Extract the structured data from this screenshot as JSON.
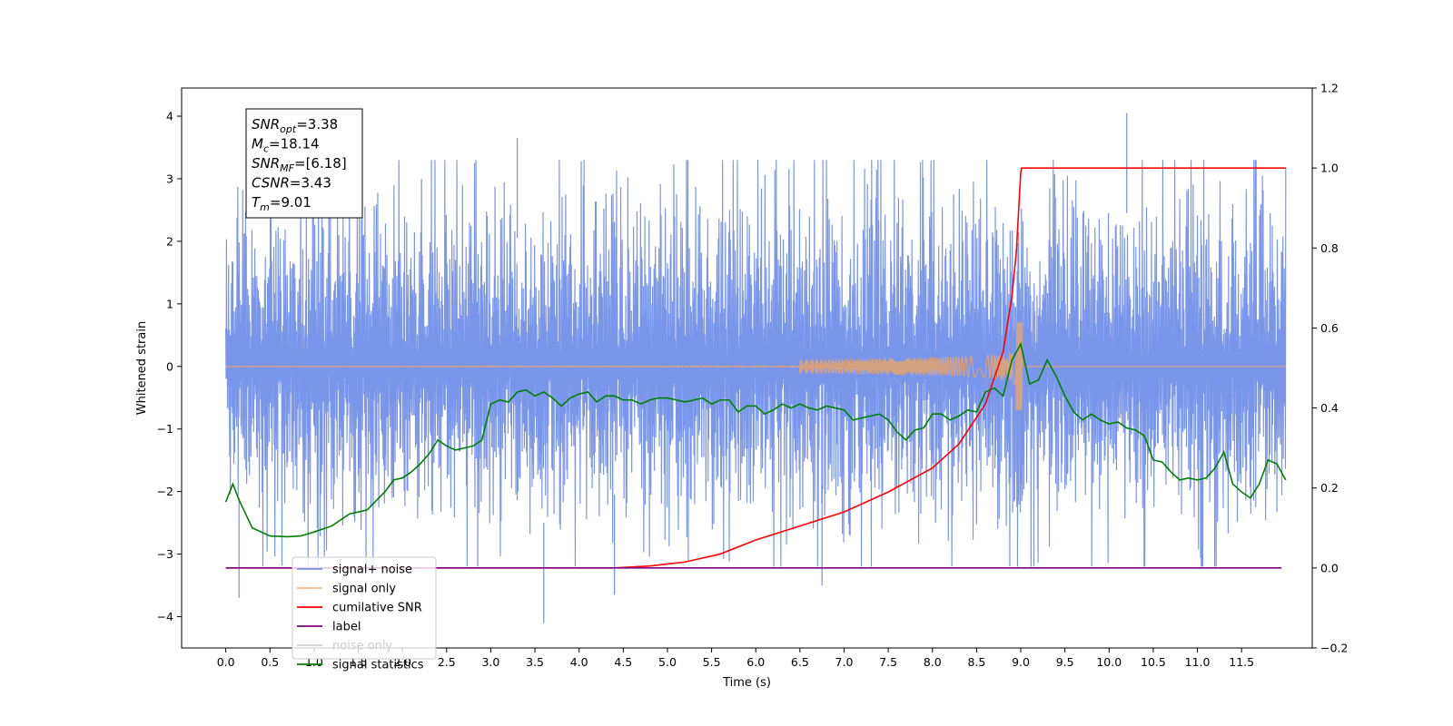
{
  "chart_data": {
    "type": "line",
    "title": "",
    "xlabel": "Time (s)",
    "ylabel": "Whitened strain",
    "y2label": "",
    "xlim": [
      -0.5,
      12.3
    ],
    "ylim": [
      -4.5,
      4.45
    ],
    "y2lim": [
      -0.2,
      1.2
    ],
    "x_ticks": [
      "0.0",
      "0.5",
      "1.0",
      "1.5",
      "2.0",
      "2.5",
      "3.0",
      "3.5",
      "4.0",
      "4.5",
      "5.0",
      "5.5",
      "6.0",
      "6.5",
      "7.0",
      "7.5",
      "8.0",
      "8.5",
      "9.0",
      "9.5",
      "10.0",
      "10.5",
      "11.0",
      "11.5"
    ],
    "y_ticks": [
      "4",
      "3",
      "2",
      "1",
      "0",
      "−1",
      "−2",
      "−3",
      "−4"
    ],
    "y2_ticks": [
      "1.2",
      "1.0",
      "0.8",
      "0.6",
      "0.4",
      "0.2",
      "0.0",
      "−0.2"
    ],
    "grid": false,
    "legend_position": "lower-left",
    "annotation": [
      {
        "sym": "SNR",
        "sub": "opt",
        "val": "=3.38"
      },
      {
        "sym": "M",
        "sub": "c",
        "val": "=18.14"
      },
      {
        "sym": "SNR",
        "sub": "MF",
        "val": "=[6.18]"
      },
      {
        "sym": "CSNR",
        "sub": "",
        "val": "=3.43"
      },
      {
        "sym": "T",
        "sub": "m",
        "val": "=9.01"
      }
    ],
    "series": [
      {
        "name": "signal+ noise",
        "color": "#4169e1",
        "opacity": 0.7,
        "axis": "left",
        "kind": "noise",
        "x_range": [
          0.0,
          12.0
        ],
        "envelope_upper": 2.4,
        "envelope_lower": -2.2,
        "extreme_peaks": [
          [
            3.3,
            3.65
          ],
          [
            10.2,
            4.05
          ],
          [
            3.6,
            -4.1
          ],
          [
            0.15,
            -3.7
          ],
          [
            4.4,
            -3.65
          ],
          [
            6.75,
            -3.5
          ]
        ]
      },
      {
        "name": "signal only",
        "color": "#f4a460",
        "opacity": 0.75,
        "axis": "left",
        "kind": "chirp",
        "x_range": [
          0.0,
          12.0
        ],
        "merger_time": 9.0,
        "peak_amplitude": 0.7
      },
      {
        "name": "cumilative SNR",
        "color": "#ff0000",
        "axis": "right",
        "x": [
          0.0,
          4.4,
          4.8,
          5.2,
          5.6,
          6.0,
          6.5,
          7.0,
          7.5,
          8.0,
          8.3,
          8.6,
          8.8,
          8.9,
          8.95,
          9.0,
          9.01,
          12.0
        ],
        "values": [
          0.0,
          0.0,
          0.005,
          0.015,
          0.035,
          0.07,
          0.105,
          0.14,
          0.19,
          0.25,
          0.31,
          0.41,
          0.54,
          0.68,
          0.79,
          0.99,
          1.0,
          1.0
        ]
      },
      {
        "name": "label",
        "color": "#800080",
        "axis": "right",
        "x": [
          0.0,
          11.95
        ],
        "values": [
          0.0,
          0.0
        ]
      },
      {
        "name": "noise only",
        "color": "#d3d3d3",
        "axis": "right",
        "hidden": true
      },
      {
        "name": "signal statistics",
        "color": "#008000",
        "axis": "right",
        "x": [
          0.0,
          0.08,
          0.15,
          0.3,
          0.5,
          0.7,
          0.85,
          1.0,
          1.2,
          1.4,
          1.6,
          1.8,
          1.9,
          2.0,
          2.1,
          2.2,
          2.3,
          2.4,
          2.5,
          2.6,
          2.7,
          2.8,
          2.9,
          3.0,
          3.1,
          3.2,
          3.3,
          3.4,
          3.5,
          3.6,
          3.7,
          3.8,
          3.9,
          4.0,
          4.1,
          4.2,
          4.3,
          4.4,
          4.5,
          4.6,
          4.7,
          4.8,
          4.9,
          5.0,
          5.1,
          5.2,
          5.3,
          5.4,
          5.5,
          5.6,
          5.7,
          5.8,
          5.9,
          6.0,
          6.1,
          6.2,
          6.3,
          6.4,
          6.5,
          6.6,
          6.7,
          6.8,
          6.9,
          7.0,
          7.1,
          7.2,
          7.3,
          7.4,
          7.5,
          7.6,
          7.7,
          7.8,
          7.9,
          8.0,
          8.1,
          8.2,
          8.3,
          8.4,
          8.5,
          8.6,
          8.7,
          8.8,
          8.9,
          9.0,
          9.1,
          9.2,
          9.3,
          9.4,
          9.5,
          9.6,
          9.7,
          9.8,
          9.9,
          10.0,
          10.1,
          10.2,
          10.3,
          10.4,
          10.5,
          10.6,
          10.7,
          10.8,
          10.9,
          11.0,
          11.1,
          11.2,
          11.3,
          11.4,
          11.5,
          11.6,
          11.7,
          11.8,
          11.9,
          12.0
        ],
        "values": [
          0.165,
          0.21,
          0.17,
          0.1,
          0.08,
          0.078,
          0.08,
          0.09,
          0.105,
          0.135,
          0.145,
          0.19,
          0.22,
          0.225,
          0.24,
          0.26,
          0.285,
          0.32,
          0.305,
          0.295,
          0.3,
          0.305,
          0.32,
          0.41,
          0.42,
          0.415,
          0.44,
          0.445,
          0.43,
          0.44,
          0.425,
          0.405,
          0.425,
          0.435,
          0.44,
          0.415,
          0.43,
          0.43,
          0.42,
          0.42,
          0.41,
          0.42,
          0.425,
          0.425,
          0.42,
          0.415,
          0.42,
          0.425,
          0.41,
          0.42,
          0.42,
          0.39,
          0.405,
          0.405,
          0.385,
          0.395,
          0.41,
          0.4,
          0.41,
          0.4,
          0.395,
          0.405,
          0.4,
          0.395,
          0.37,
          0.375,
          0.38,
          0.385,
          0.37,
          0.34,
          0.32,
          0.345,
          0.35,
          0.385,
          0.385,
          0.37,
          0.38,
          0.395,
          0.39,
          0.44,
          0.45,
          0.43,
          0.52,
          0.56,
          0.46,
          0.47,
          0.52,
          0.48,
          0.43,
          0.39,
          0.37,
          0.385,
          0.37,
          0.36,
          0.365,
          0.35,
          0.345,
          0.33,
          0.27,
          0.265,
          0.24,
          0.22,
          0.225,
          0.22,
          0.225,
          0.25,
          0.29,
          0.21,
          0.19,
          0.175,
          0.21,
          0.27,
          0.26,
          0.22
        ]
      }
    ]
  }
}
